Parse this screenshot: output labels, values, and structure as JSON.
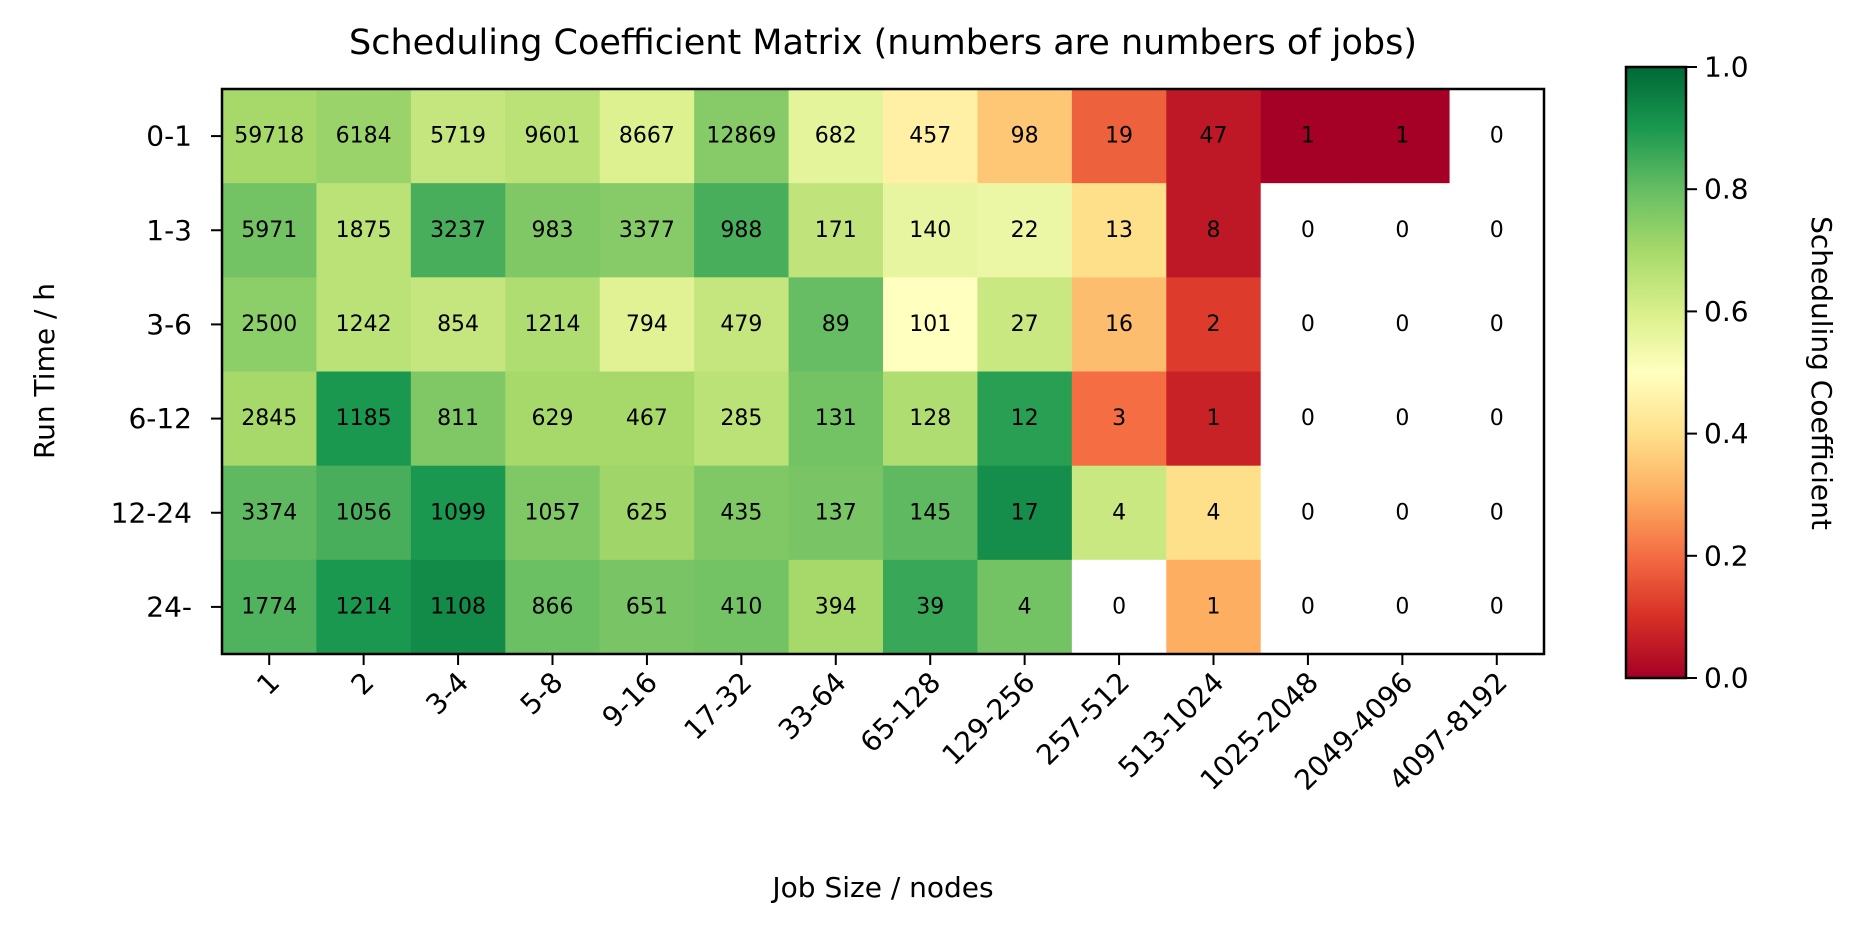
{
  "chart_data": {
    "type": "heatmap",
    "title": "Scheduling Coefficient Matrix (numbers are numbers of jobs)",
    "xlabel": "Job Size / nodes",
    "ylabel": "Run Time / h",
    "x_categories": [
      "1",
      "2",
      "3-4",
      "5-8",
      "9-16",
      "17-32",
      "33-64",
      "65-128",
      "129-256",
      "257-512",
      "513-1024",
      "1025-2048",
      "2049-4096",
      "4097-8192"
    ],
    "y_categories": [
      "0-1",
      "1-3",
      "3-6",
      "6-12",
      "12-24",
      "24-"
    ],
    "job_counts": [
      [
        59718,
        6184,
        5719,
        9601,
        8667,
        12869,
        682,
        457,
        98,
        19,
        47,
        1,
        1,
        0
      ],
      [
        5971,
        1875,
        3237,
        983,
        3377,
        988,
        171,
        140,
        22,
        13,
        8,
        0,
        0,
        0
      ],
      [
        2500,
        1242,
        854,
        1214,
        794,
        479,
        89,
        101,
        27,
        16,
        2,
        0,
        0,
        0
      ],
      [
        2845,
        1185,
        811,
        629,
        467,
        285,
        131,
        128,
        12,
        3,
        1,
        0,
        0,
        0
      ],
      [
        3374,
        1056,
        1099,
        1057,
        625,
        435,
        137,
        145,
        17,
        4,
        4,
        0,
        0,
        0
      ],
      [
        1774,
        1214,
        1108,
        866,
        651,
        410,
        394,
        39,
        4,
        0,
        1,
        0,
        0,
        0
      ]
    ],
    "coefficients": [
      [
        0.7,
        0.72,
        0.64,
        0.66,
        0.59,
        0.75,
        0.57,
        0.45,
        0.35,
        0.18,
        0.05,
        0.0,
        0.0,
        null
      ],
      [
        0.78,
        0.66,
        0.84,
        0.76,
        0.75,
        0.84,
        0.65,
        0.56,
        0.55,
        0.4,
        0.05,
        null,
        null,
        null
      ],
      [
        0.74,
        0.66,
        0.64,
        0.68,
        0.58,
        0.64,
        0.8,
        0.5,
        0.63,
        0.33,
        0.12,
        null,
        null,
        null
      ],
      [
        0.7,
        0.9,
        0.76,
        0.7,
        0.7,
        0.66,
        0.78,
        0.68,
        0.88,
        0.2,
        0.07,
        null,
        null,
        null
      ],
      [
        0.81,
        0.84,
        0.9,
        0.76,
        0.71,
        0.76,
        0.77,
        0.81,
        0.92,
        0.63,
        0.4,
        null,
        null,
        null
      ],
      [
        0.83,
        0.9,
        0.93,
        0.79,
        0.77,
        0.78,
        0.7,
        0.86,
        0.78,
        null,
        0.3,
        null,
        null,
        null
      ]
    ],
    "colorbar": {
      "label": "Scheduling Coefficient",
      "colormap": "RdYlGn",
      "vmin": 0.0,
      "vmax": 1.0,
      "ticks": [
        0.0,
        0.2,
        0.4,
        0.6,
        0.8,
        1.0
      ],
      "tick_labels": [
        "0.0",
        "0.2",
        "0.4",
        "0.6",
        "0.8",
        "1.0"
      ]
    }
  }
}
